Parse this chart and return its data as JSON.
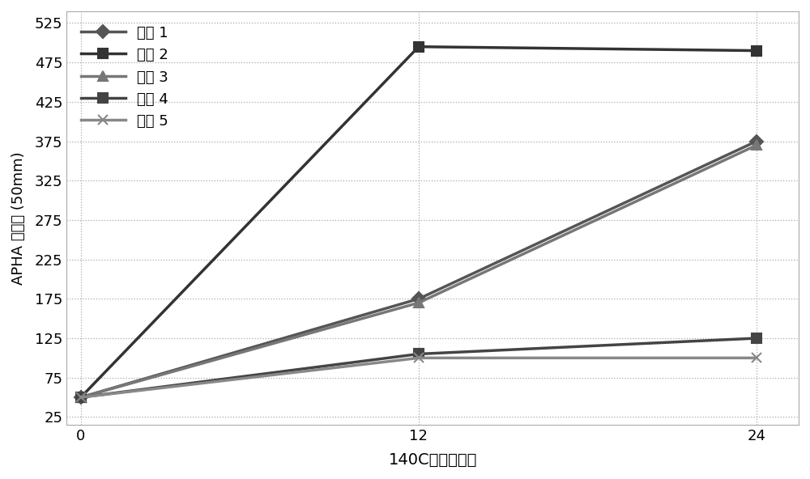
{
  "x": [
    0,
    12,
    24
  ],
  "series": [
    {
      "label": "样品 1",
      "values": [
        50,
        175,
        375
      ],
      "color": "#555555",
      "marker": "D",
      "markersize": 8,
      "linewidth": 2.5
    },
    {
      "label": "样品 2",
      "values": [
        50,
        495,
        490
      ],
      "color": "#333333",
      "marker": "s",
      "markersize": 9,
      "linewidth": 2.5
    },
    {
      "label": "样品 3",
      "values": [
        50,
        170,
        370
      ],
      "color": "#777777",
      "marker": "^",
      "markersize": 9,
      "linewidth": 2.5
    },
    {
      "label": "样品 4",
      "values": [
        50,
        105,
        125
      ],
      "color": "#444444",
      "marker": "s",
      "markersize": 9,
      "linewidth": 2.5
    },
    {
      "label": "样品 5",
      "values": [
        50,
        100,
        100
      ],
      "color": "#888888",
      "marker": "x",
      "markersize": 9,
      "linewidth": 2.5
    }
  ],
  "xlabel": "140C下的小时数",
  "ylabel": "APHA 颜色值 (50mm)",
  "yticks": [
    25,
    75,
    125,
    175,
    225,
    275,
    325,
    375,
    425,
    475,
    525
  ],
  "xticks": [
    0,
    12,
    24
  ],
  "ylim": [
    15,
    540
  ],
  "xlim": [
    -0.5,
    25.5
  ],
  "grid_color": "#aaaaaa",
  "bg_color": "#ffffff",
  "legend_loc": "upper left",
  "xlabel_fontsize": 14,
  "ylabel_fontsize": 13,
  "tick_fontsize": 13,
  "legend_fontsize": 13,
  "figsize": [
    10.0,
    5.92
  ],
  "dpi": 100
}
